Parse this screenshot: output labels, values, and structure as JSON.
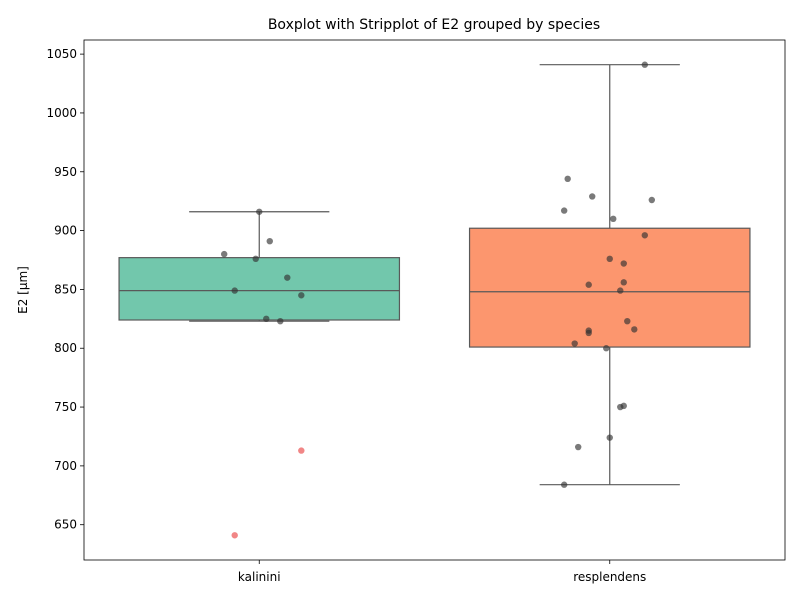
{
  "chart_data": {
    "type": "box",
    "title": "Boxplot with Stripplot of E2 grouped by species",
    "xlabel": "",
    "ylabel": "E2 [μm]",
    "ylim": [
      620,
      1062
    ],
    "yticks": [
      650,
      700,
      750,
      800,
      850,
      900,
      950,
      1000,
      1050
    ],
    "grid": false,
    "categories": [
      "kalinini",
      "resplendens"
    ],
    "box_colors": [
      "#66c2a5",
      "#fc8d62"
    ],
    "point_color": "#333333",
    "outlier_color": "#f08080",
    "boxes": [
      {
        "category": "kalinini",
        "whisker_low": 823,
        "q1": 824,
        "median": 849,
        "q3": 877,
        "whisker_high": 916
      },
      {
        "category": "resplendens",
        "whisker_low": 684,
        "q1": 801,
        "median": 848,
        "q3": 902,
        "whisker_high": 1041
      }
    ],
    "outliers": [
      {
        "category": "kalinini",
        "value": 713,
        "jitter": 0.12
      },
      {
        "category": "kalinini",
        "value": 641,
        "jitter": -0.07
      }
    ],
    "points": [
      {
        "category": "kalinini",
        "value": 916,
        "jitter": 0.0
      },
      {
        "category": "kalinini",
        "value": 891,
        "jitter": 0.03
      },
      {
        "category": "kalinini",
        "value": 880,
        "jitter": -0.1
      },
      {
        "category": "kalinini",
        "value": 876,
        "jitter": -0.01
      },
      {
        "category": "kalinini",
        "value": 860,
        "jitter": 0.08
      },
      {
        "category": "kalinini",
        "value": 849,
        "jitter": -0.07
      },
      {
        "category": "kalinini",
        "value": 845,
        "jitter": 0.12
      },
      {
        "category": "kalinini",
        "value": 825,
        "jitter": 0.02
      },
      {
        "category": "kalinini",
        "value": 823,
        "jitter": 0.06
      },
      {
        "category": "resplendens",
        "value": 1041,
        "jitter": 0.1
      },
      {
        "category": "resplendens",
        "value": 944,
        "jitter": -0.12
      },
      {
        "category": "resplendens",
        "value": 929,
        "jitter": -0.05
      },
      {
        "category": "resplendens",
        "value": 926,
        "jitter": 0.12
      },
      {
        "category": "resplendens",
        "value": 917,
        "jitter": -0.13
      },
      {
        "category": "resplendens",
        "value": 910,
        "jitter": 0.01
      },
      {
        "category": "resplendens",
        "value": 896,
        "jitter": 0.1
      },
      {
        "category": "resplendens",
        "value": 876,
        "jitter": 0.0
      },
      {
        "category": "resplendens",
        "value": 872,
        "jitter": 0.04
      },
      {
        "category": "resplendens",
        "value": 856,
        "jitter": 0.04
      },
      {
        "category": "resplendens",
        "value": 854,
        "jitter": -0.06
      },
      {
        "category": "resplendens",
        "value": 849,
        "jitter": 0.03
      },
      {
        "category": "resplendens",
        "value": 823,
        "jitter": 0.05
      },
      {
        "category": "resplendens",
        "value": 816,
        "jitter": 0.07
      },
      {
        "category": "resplendens",
        "value": 815,
        "jitter": -0.06
      },
      {
        "category": "resplendens",
        "value": 813,
        "jitter": -0.06
      },
      {
        "category": "resplendens",
        "value": 804,
        "jitter": -0.1
      },
      {
        "category": "resplendens",
        "value": 800,
        "jitter": -0.01
      },
      {
        "category": "resplendens",
        "value": 751,
        "jitter": 0.04
      },
      {
        "category": "resplendens",
        "value": 750,
        "jitter": 0.03
      },
      {
        "category": "resplendens",
        "value": 724,
        "jitter": 0.0
      },
      {
        "category": "resplendens",
        "value": 716,
        "jitter": -0.09
      },
      {
        "category": "resplendens",
        "value": 684,
        "jitter": -0.13
      }
    ]
  }
}
